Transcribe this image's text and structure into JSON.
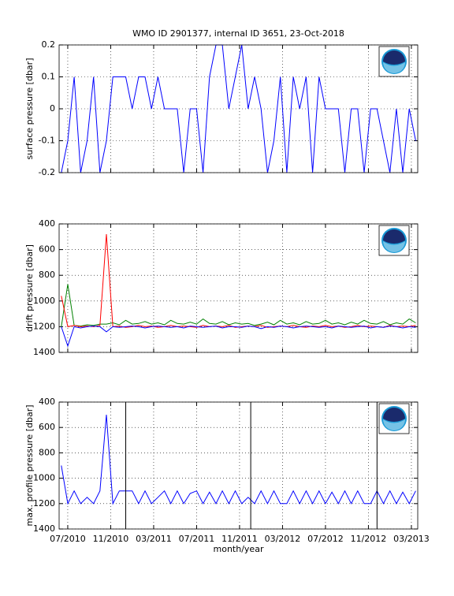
{
  "chart_data": [
    {
      "type": "line",
      "title": "WMO ID 2901377, internal ID 3651, 23-Oct-2018",
      "ylabel": "surface pressure [dbar]",
      "x": [
        2010.45,
        2010.5,
        2010.55,
        2010.6,
        2010.65,
        2010.7,
        2010.75,
        2010.8,
        2010.85,
        2010.9,
        2010.95,
        2011.0,
        2011.05,
        2011.1,
        2011.15,
        2011.2,
        2011.25,
        2011.3,
        2011.35,
        2011.4,
        2011.45,
        2011.5,
        2011.55,
        2011.6,
        2011.65,
        2011.7,
        2011.75,
        2011.8,
        2011.85,
        2011.9,
        2011.95,
        2012.0,
        2012.05,
        2012.1,
        2012.15,
        2012.2,
        2012.25,
        2012.3,
        2012.35,
        2012.4,
        2012.45,
        2012.5,
        2012.55,
        2012.6,
        2012.65,
        2012.7,
        2012.75,
        2012.8,
        2012.85,
        2012.9,
        2012.95,
        2013.0,
        2013.05,
        2013.1,
        2013.15,
        2013.2
      ],
      "series": [
        {
          "color": "#0000ff",
          "values": [
            -0.2,
            -0.1,
            0.1,
            -0.2,
            -0.1,
            0.1,
            -0.2,
            -0.1,
            0.1,
            0.1,
            0.1,
            0,
            0.1,
            0.1,
            0,
            0.1,
            0,
            0,
            0,
            -0.2,
            0,
            0,
            -0.2,
            0.1,
            0.2,
            0.2,
            0,
            0.1,
            0.2,
            0,
            0.1,
            0,
            -0.2,
            -0.1,
            0.1,
            -0.2,
            0.1,
            0,
            0.1,
            -0.2,
            0.1,
            0,
            0,
            0,
            -0.2,
            0,
            0,
            -0.2,
            0,
            0,
            -0.1,
            -0.2,
            0,
            -0.2,
            0,
            -0.1
          ]
        }
      ],
      "xlim": [
        2010.433,
        2013.216
      ],
      "xticks": [
        2010.5,
        2010.8333,
        2011.1667,
        2011.5,
        2011.8333,
        2012.1667,
        2012.5,
        2012.8333,
        2013.1667
      ],
      "ylim": [
        -0.2,
        0.2
      ],
      "yticks": [
        -0.2,
        -0.1,
        0,
        0.1,
        0.2
      ],
      "y_reversed": false,
      "grid": true
    },
    {
      "type": "line",
      "ylabel": "drift pressure [dbar]",
      "x": [
        2010.45,
        2010.5,
        2010.55,
        2010.6,
        2010.65,
        2010.7,
        2010.75,
        2010.8,
        2010.85,
        2010.9,
        2010.95,
        2011.0,
        2011.05,
        2011.1,
        2011.15,
        2011.2,
        2011.25,
        2011.3,
        2011.35,
        2011.4,
        2011.45,
        2011.5,
        2011.55,
        2011.6,
        2011.65,
        2011.7,
        2011.75,
        2011.8,
        2011.85,
        2011.9,
        2011.95,
        2012.0,
        2012.05,
        2012.1,
        2012.15,
        2012.2,
        2012.25,
        2012.3,
        2012.35,
        2012.4,
        2012.45,
        2012.5,
        2012.55,
        2012.6,
        2012.65,
        2012.7,
        2012.75,
        2012.8,
        2012.85,
        2012.9,
        2012.95,
        2013.0,
        2013.05,
        2013.1,
        2013.15,
        2013.2
      ],
      "series": [
        {
          "color": "#008000",
          "values": [
            1200,
            870,
            1190,
            1195,
            1185,
            1190,
            1180,
            1180,
            1170,
            1185,
            1150,
            1180,
            1175,
            1160,
            1180,
            1170,
            1185,
            1150,
            1175,
            1180,
            1165,
            1180,
            1140,
            1175,
            1180,
            1160,
            1185,
            1170,
            1180,
            1175,
            1190,
            1180,
            1165,
            1185,
            1150,
            1180,
            1170,
            1185,
            1160,
            1180,
            1175,
            1150,
            1180,
            1170,
            1185,
            1165,
            1180,
            1150,
            1175,
            1180,
            1160,
            1185,
            1170,
            1180,
            1140,
            1170
          ]
        },
        {
          "color": "#ff0000",
          "values": [
            960,
            1200,
            1190,
            1200,
            1195,
            1200,
            1190,
            480,
            1200,
            1195,
            1205,
            1200,
            1190,
            1200,
            1195,
            1205,
            1200,
            1190,
            1200,
            1195,
            1200,
            1205,
            1190,
            1200,
            1195,
            1200,
            1190,
            1205,
            1200,
            1195,
            1200,
            1190,
            1205,
            1200,
            1195,
            1200,
            1190,
            1200,
            1205,
            1195,
            1200,
            1190,
            1200,
            1195,
            1205,
            1200,
            1190,
            1200,
            1195,
            1200,
            1205,
            1190,
            1200,
            1195,
            1200,
            1190
          ]
        },
        {
          "color": "#0000ff",
          "values": [
            1200,
            1350,
            1200,
            1210,
            1200,
            1195,
            1200,
            1240,
            1200,
            1205,
            1200,
            1195,
            1200,
            1210,
            1200,
            1195,
            1200,
            1205,
            1200,
            1210,
            1195,
            1200,
            1205,
            1200,
            1195,
            1210,
            1200,
            1200,
            1205,
            1195,
            1200,
            1215,
            1200,
            1205,
            1195,
            1200,
            1210,
            1200,
            1195,
            1200,
            1205,
            1200,
            1210,
            1195,
            1200,
            1205,
            1200,
            1195,
            1210,
            1200,
            1205,
            1195,
            1200,
            1210,
            1200,
            1205
          ]
        }
      ],
      "xlim": [
        2010.433,
        2013.216
      ],
      "xticks": [
        2010.5,
        2010.8333,
        2011.1667,
        2011.5,
        2011.8333,
        2012.1667,
        2012.5,
        2012.8333,
        2013.1667
      ],
      "ylim": [
        400,
        1400
      ],
      "yticks": [
        400,
        600,
        800,
        1000,
        1200,
        1400
      ],
      "y_reversed": true,
      "grid": true
    },
    {
      "type": "line",
      "ylabel": "max. profile pressure [dbar]",
      "xlabel": "month/year",
      "x": [
        2010.45,
        2010.5,
        2010.55,
        2010.6,
        2010.65,
        2010.7,
        2010.75,
        2010.8,
        2010.85,
        2010.9,
        2010.95,
        2011.0,
        2011.05,
        2011.1,
        2011.15,
        2011.2,
        2011.25,
        2011.3,
        2011.35,
        2011.4,
        2011.45,
        2011.5,
        2011.55,
        2011.6,
        2011.65,
        2011.7,
        2011.75,
        2011.8,
        2011.85,
        2011.9,
        2011.95,
        2012.0,
        2012.05,
        2012.1,
        2012.15,
        2012.2,
        2012.25,
        2012.3,
        2012.35,
        2012.4,
        2012.45,
        2012.5,
        2012.55,
        2012.6,
        2012.65,
        2012.7,
        2012.75,
        2012.8,
        2012.85,
        2012.9,
        2012.95,
        2013.0,
        2013.05,
        2013.1,
        2013.15,
        2013.2
      ],
      "series": [
        {
          "color": "#0000ff",
          "values": [
            900,
            1200,
            1100,
            1200,
            1150,
            1200,
            1100,
            500,
            1200,
            1100,
            1100,
            1100,
            1200,
            1100,
            1200,
            1150,
            1100,
            1200,
            1100,
            1200,
            1120,
            1100,
            1200,
            1110,
            1200,
            1100,
            1200,
            1100,
            1200,
            1150,
            1200,
            1100,
            1200,
            1100,
            1200,
            1200,
            1100,
            1200,
            1100,
            1200,
            1100,
            1200,
            1110,
            1200,
            1100,
            1200,
            1100,
            1200,
            1200,
            1100,
            1200,
            1100,
            1200,
            1110,
            1200,
            1100
          ]
        }
      ],
      "vlines": [
        2010.95,
        2011.92,
        2012.9
      ],
      "xlim": [
        2010.433,
        2013.216
      ],
      "xticks": [
        {
          "value": 2010.5,
          "label": "07/2010"
        },
        {
          "value": 2010.8333,
          "label": "11/2010"
        },
        {
          "value": 2011.1667,
          "label": "03/2011"
        },
        {
          "value": 2011.5,
          "label": "07/2011"
        },
        {
          "value": 2011.8333,
          "label": "11/2011"
        },
        {
          "value": 2012.1667,
          "label": "03/2012"
        },
        {
          "value": 2012.5,
          "label": "07/2012"
        },
        {
          "value": 2012.8333,
          "label": "11/2012"
        },
        {
          "value": 2013.1667,
          "label": "03/2013"
        }
      ],
      "ylim": [
        400,
        1400
      ],
      "yticks": [
        400,
        600,
        800,
        1000,
        1200,
        1400
      ],
      "y_reversed": true,
      "grid": true
    }
  ]
}
